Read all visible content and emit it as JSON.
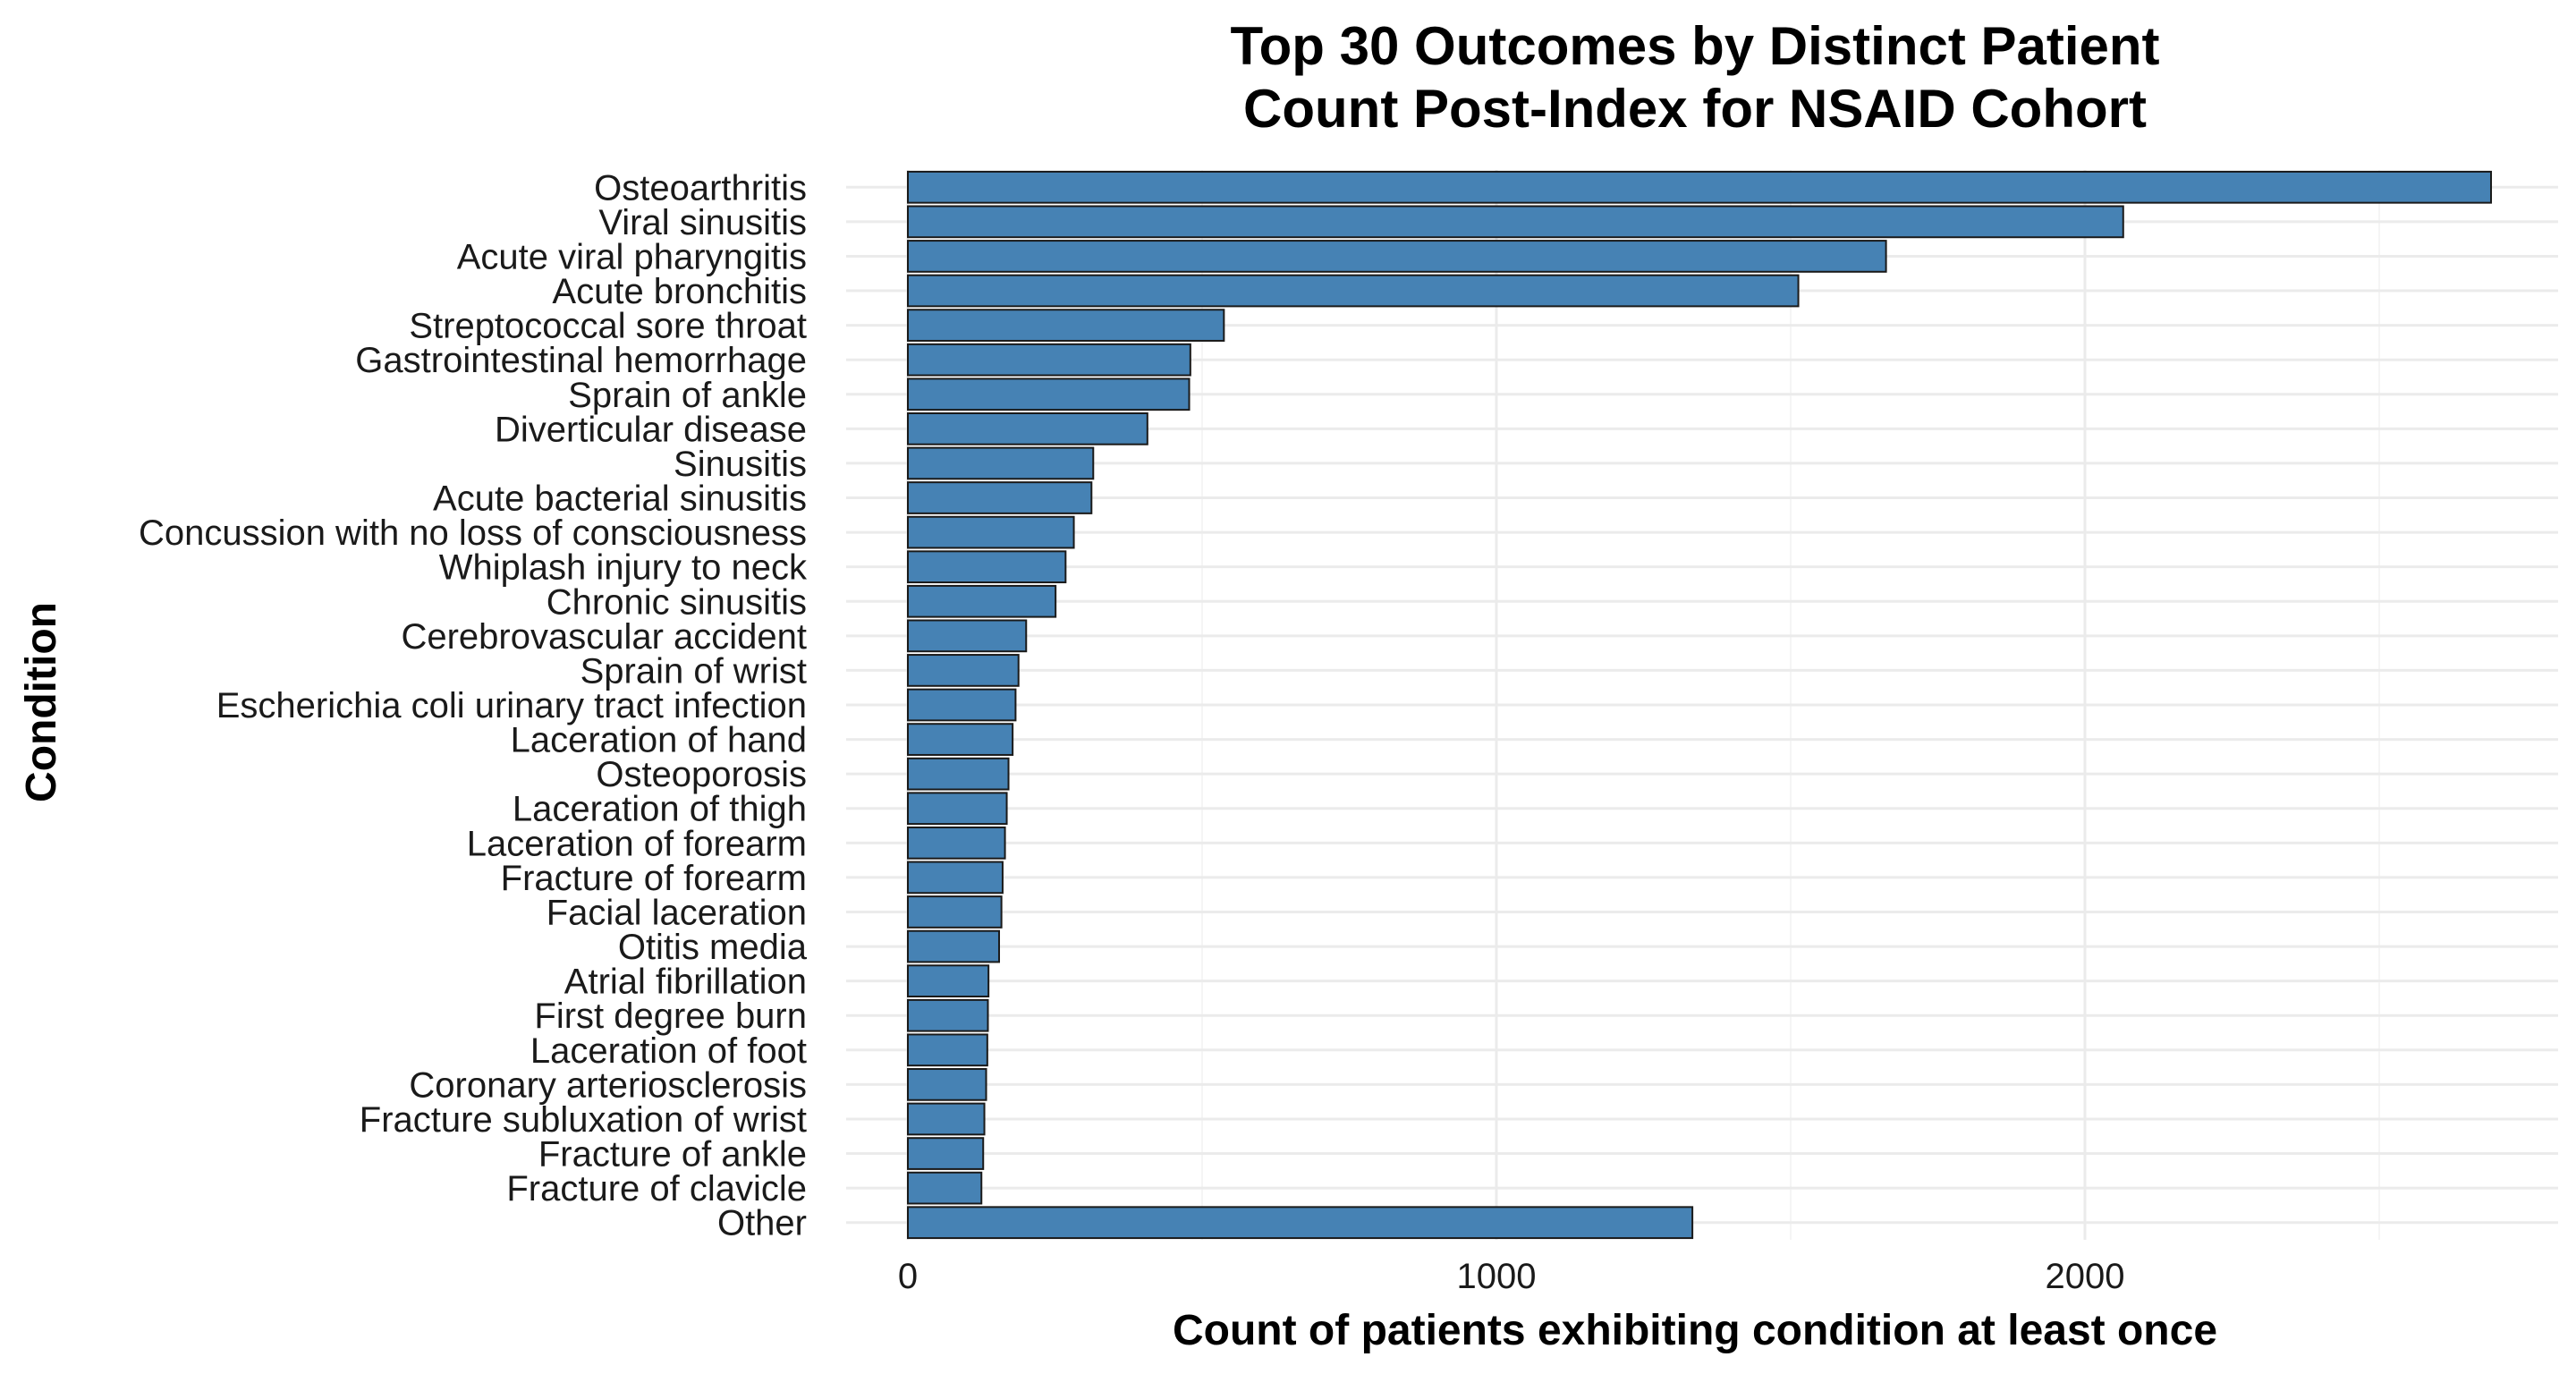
{
  "chart_data": {
    "type": "bar",
    "orientation": "horizontal",
    "title_lines": [
      "Top 30 Outcomes by Distinct Patient",
      "Count Post-Index for NSAID Cohort"
    ],
    "xlabel": "Count of patients exhibiting condition at least once",
    "ylabel": "Condition",
    "xlim": [
      0,
      2850
    ],
    "x_ticks": [
      0,
      1000,
      2000
    ],
    "x_tick_labels": [
      "0",
      "1000",
      "2000"
    ],
    "grid": true,
    "bar_color": "#4682b4",
    "categories": [
      "Osteoarthritis",
      "Viral sinusitis",
      "Acute viral pharyngitis",
      "Acute bronchitis",
      "Streptococcal sore throat",
      "Gastrointestinal hemorrhage",
      "Sprain of ankle",
      "Diverticular disease",
      "Sinusitis",
      "Acute bacterial sinusitis",
      "Concussion with no loss of consciousness",
      "Whiplash injury to neck",
      "Chronic sinusitis",
      "Cerebrovascular accident",
      "Sprain of wrist",
      "Escherichia coli urinary tract infection",
      "Laceration of hand",
      "Osteoporosis",
      "Laceration of thigh",
      "Laceration of forearm",
      "Fracture of forearm",
      "Facial laceration",
      "Otitis media",
      "Atrial fibrillation",
      "First degree burn",
      "Laceration of foot",
      "Coronary arteriosclerosis",
      "Fracture subluxation of wrist",
      "Fracture of ankle",
      "Fracture of clavicle",
      "Other"
    ],
    "values": [
      2690,
      2065,
      1662,
      1513,
      537,
      480,
      478,
      407,
      315,
      312,
      282,
      268,
      251,
      201,
      188,
      183,
      178,
      171,
      168,
      165,
      161,
      159,
      155,
      137,
      136,
      135,
      133,
      130,
      128,
      125,
      1333
    ]
  }
}
